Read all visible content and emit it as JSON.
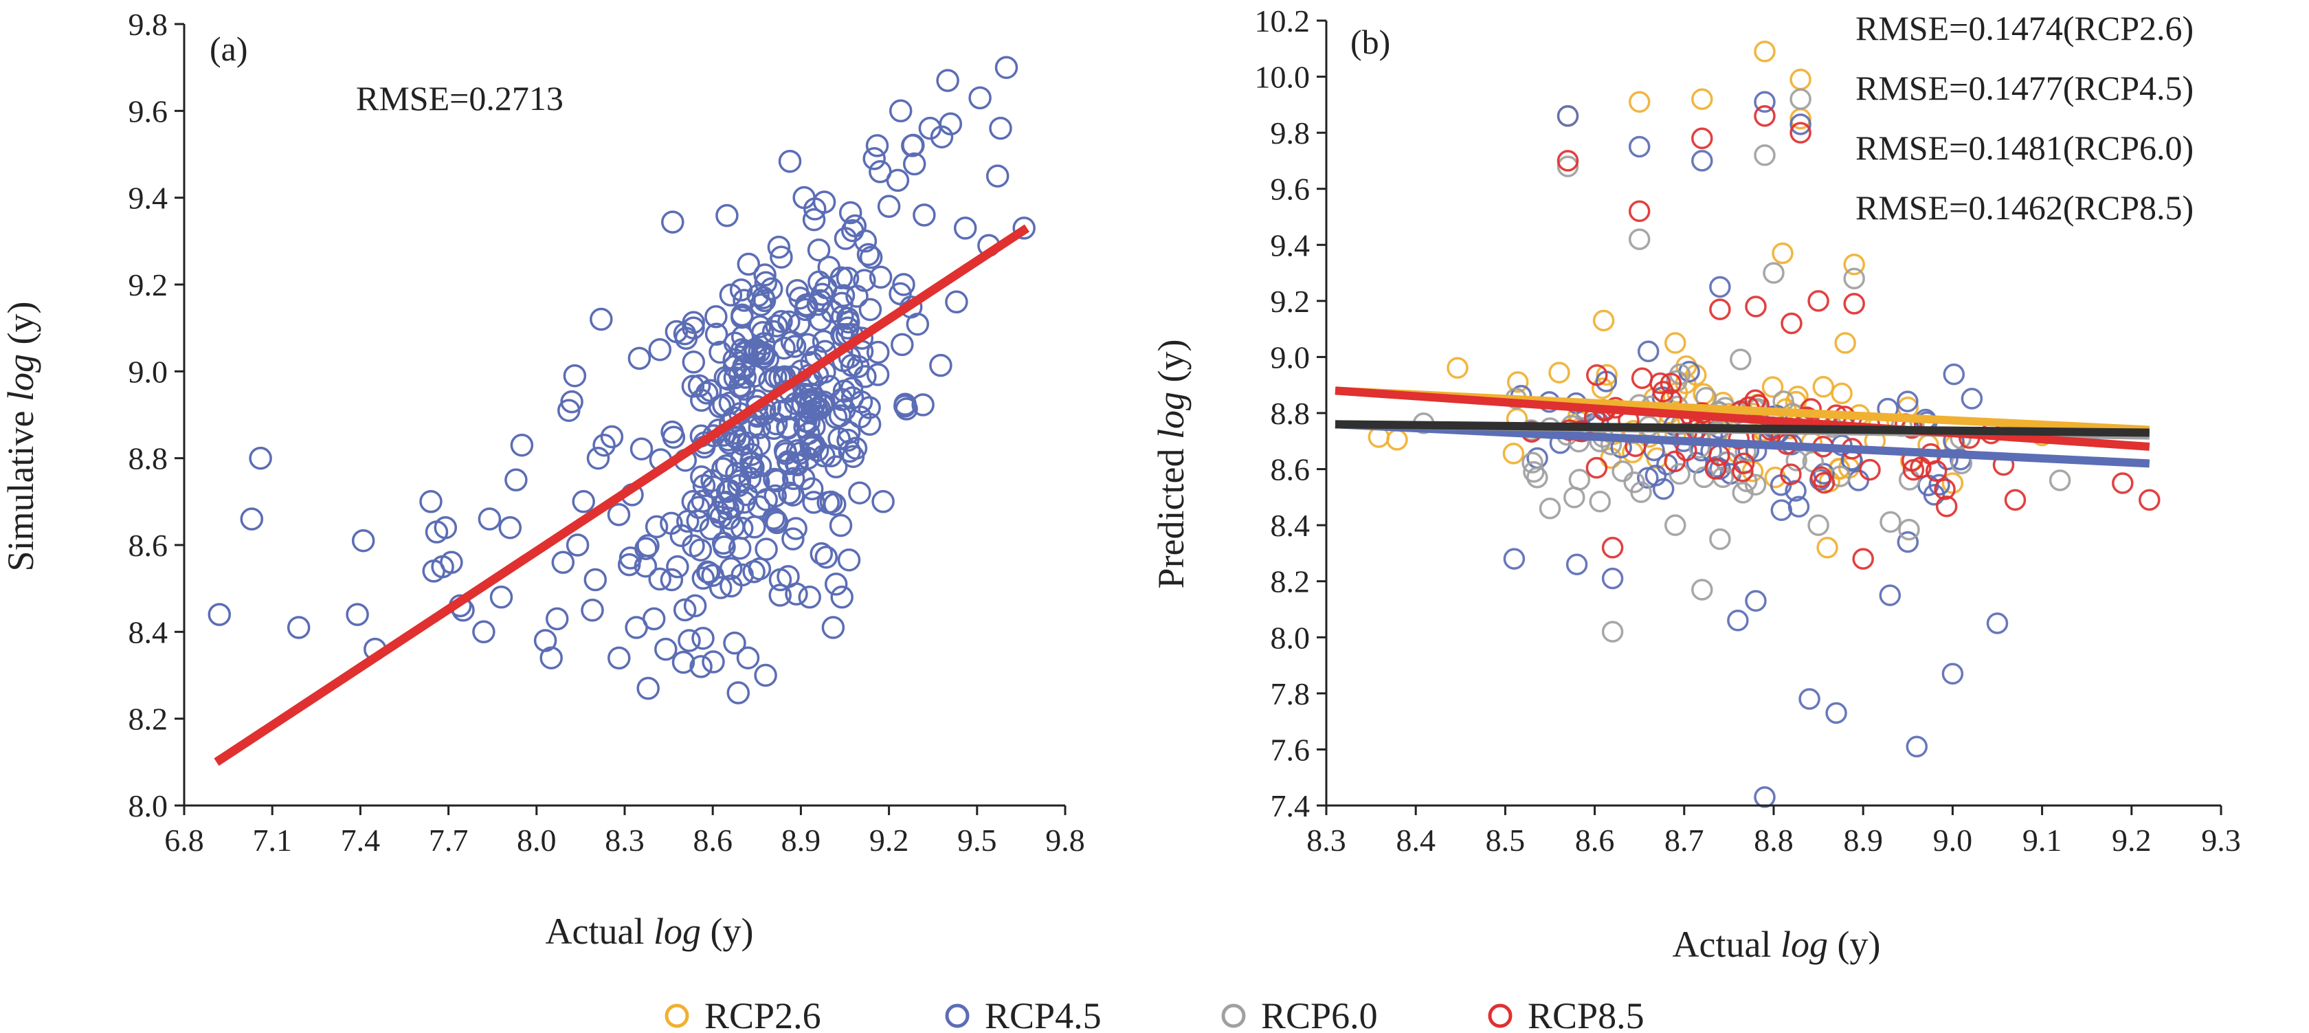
{
  "chart_data": [
    {
      "type": "scatter",
      "panel_label": "(a)",
      "annotation": "RMSE=0.2713",
      "xlabel_prefix": "Actual ",
      "xlabel_italic": "log",
      "xlabel_suffix": " (y)",
      "ylabel_prefix": "Simulative ",
      "ylabel_italic": "log",
      "ylabel_suffix": " (y)",
      "xlim": [
        6.8,
        9.8
      ],
      "ylim": [
        8.0,
        9.8
      ],
      "xticks": [
        "6.8",
        "7.1",
        "7.4",
        "7.7",
        "8.0",
        "8.3",
        "8.6",
        "8.9",
        "9.2",
        "9.5",
        "9.8"
      ],
      "yticks": [
        "8.0",
        "8.2",
        "8.4",
        "8.6",
        "8.8",
        "9.0",
        "9.2",
        "9.4",
        "9.6",
        "9.8"
      ],
      "marker_color": "#5b6db5",
      "fit_line": {
        "color": "#e03030",
        "x": [
          6.91,
          9.67
        ],
        "y": [
          8.1,
          9.33
        ]
      },
      "generated_cluster": {
        "center_x": 8.82,
        "center_y": 8.92,
        "sd_x": 0.2,
        "sd_y": 0.2,
        "slope": 0.44,
        "count": 330,
        "seed": 11
      },
      "points": [
        [
          6.92,
          8.44
        ],
        [
          7.03,
          8.66
        ],
        [
          7.06,
          8.8
        ],
        [
          7.19,
          8.41
        ],
        [
          7.39,
          8.44
        ],
        [
          7.41,
          8.61
        ],
        [
          7.45,
          8.36
        ],
        [
          7.64,
          8.7
        ],
        [
          7.65,
          8.54
        ],
        [
          7.66,
          8.63
        ],
        [
          7.68,
          8.55
        ],
        [
          7.69,
          8.64
        ],
        [
          7.71,
          8.56
        ],
        [
          7.74,
          8.46
        ],
        [
          7.75,
          8.45
        ],
        [
          7.82,
          8.4
        ],
        [
          7.84,
          8.66
        ],
        [
          7.88,
          8.48
        ],
        [
          7.91,
          8.64
        ],
        [
          7.93,
          8.75
        ],
        [
          7.95,
          8.83
        ],
        [
          8.03,
          8.38
        ],
        [
          8.05,
          8.34
        ],
        [
          8.07,
          8.43
        ],
        [
          8.09,
          8.56
        ],
        [
          8.11,
          8.91
        ],
        [
          8.12,
          8.93
        ],
        [
          8.13,
          8.99
        ],
        [
          8.14,
          8.6
        ],
        [
          8.16,
          8.7
        ],
        [
          8.19,
          8.45
        ],
        [
          8.2,
          8.52
        ],
        [
          8.21,
          8.8
        ],
        [
          8.22,
          9.12
        ],
        [
          8.23,
          8.83
        ],
        [
          8.28,
          8.67
        ],
        [
          8.32,
          8.57
        ],
        [
          8.34,
          8.41
        ],
        [
          8.35,
          9.03
        ],
        [
          8.38,
          8.27
        ],
        [
          8.4,
          8.43
        ],
        [
          8.42,
          9.05
        ],
        [
          8.44,
          8.36
        ],
        [
          8.46,
          8.52
        ],
        [
          8.48,
          8.55
        ],
        [
          8.5,
          8.33
        ],
        [
          8.52,
          8.38
        ],
        [
          8.54,
          8.46
        ],
        [
          8.56,
          8.32
        ],
        [
          8.6,
          8.53
        ],
        [
          8.72,
          8.34
        ],
        [
          8.78,
          8.3
        ],
        [
          8.83,
          8.52
        ],
        [
          8.93,
          8.48
        ],
        [
          8.97,
          8.58
        ],
        [
          9.01,
          8.41
        ],
        [
          9.02,
          8.51
        ],
        [
          9.04,
          8.48
        ],
        [
          8.98,
          9.39
        ],
        [
          9.02,
          8.78
        ],
        [
          9.1,
          8.72
        ],
        [
          9.15,
          9.49
        ],
        [
          9.16,
          9.52
        ],
        [
          9.17,
          9.46
        ],
        [
          9.18,
          8.7
        ],
        [
          9.2,
          9.38
        ],
        [
          9.23,
          9.44
        ],
        [
          9.24,
          9.6
        ],
        [
          9.28,
          9.52
        ],
        [
          9.32,
          9.36
        ],
        [
          9.34,
          9.56
        ],
        [
          9.38,
          9.54
        ],
        [
          9.4,
          9.67
        ],
        [
          9.41,
          9.57
        ],
        [
          9.43,
          9.16
        ],
        [
          9.46,
          9.33
        ],
        [
          9.51,
          9.63
        ],
        [
          9.54,
          9.29
        ],
        [
          9.57,
          9.45
        ],
        [
          9.58,
          9.56
        ],
        [
          9.6,
          9.7
        ],
        [
          9.66,
          9.33
        ],
        [
          9.12,
          9.3
        ],
        [
          9.25,
          9.2
        ],
        [
          9.06,
          9.1
        ],
        [
          8.92,
          9.15
        ],
        [
          8.8,
          9.19
        ],
        [
          8.7,
          9.05
        ],
        [
          8.66,
          8.88
        ],
        [
          8.58,
          8.95
        ]
      ]
    },
    {
      "type": "scatter",
      "panel_label": "(b)",
      "annotations": [
        "RMSE=0.1474(RCP2.6)",
        "RMSE=0.1477(RCP4.5)",
        "RMSE=0.1481(RCP6.0)",
        "RMSE=0.1462(RCP8.5)"
      ],
      "xlabel_prefix": "Actual ",
      "xlabel_italic": "log",
      "xlabel_suffix": " (y)",
      "ylabel_prefix": "Predicted ",
      "ylabel_italic": "log",
      "ylabel_suffix": " (y)",
      "xlim": [
        8.3,
        9.3
      ],
      "ylim": [
        7.4,
        10.2
      ],
      "xticks": [
        "8.3",
        "8.4",
        "8.5",
        "8.6",
        "8.7",
        "8.8",
        "8.9",
        "9.0",
        "9.1",
        "9.2",
        "9.3"
      ],
      "yticks": [
        "7.4",
        "7.6",
        "7.8",
        "8.0",
        "8.2",
        "8.4",
        "8.6",
        "8.8",
        "9.0",
        "9.2",
        "9.4",
        "9.6",
        "9.8",
        "10.0",
        "10.2"
      ],
      "legend_position": "bottom",
      "series": [
        {
          "name": "RCP2.6",
          "color": "#f0b030",
          "fit": {
            "x": [
              8.31,
              9.22
            ],
            "y": [
              8.88,
              8.74
            ]
          },
          "generated_cluster": {
            "center_x": 8.76,
            "center_y": 8.74,
            "sd_x": 0.15,
            "sd_y": 0.1,
            "slope": -0.15,
            "count": 60,
            "seed": 21
          },
          "points": [
            [
              8.57,
              9.86
            ],
            [
              8.65,
              9.91
            ],
            [
              8.72,
              9.92
            ],
            [
              8.79,
              10.09
            ],
            [
              8.83,
              9.99
            ],
            [
              8.83,
              9.85
            ],
            [
              8.61,
              9.13
            ],
            [
              8.81,
              9.37
            ],
            [
              8.88,
              9.05
            ],
            [
              8.95,
              8.82
            ],
            [
              9.0,
              8.55
            ],
            [
              8.69,
              9.05
            ],
            [
              8.89,
              9.33
            ],
            [
              8.86,
              8.32
            ],
            [
              9.1,
              8.72
            ]
          ]
        },
        {
          "name": "RCP4.5",
          "color": "#5b6db5",
          "fit": {
            "x": [
              8.31,
              9.22
            ],
            "y": [
              8.76,
              8.62
            ]
          },
          "generated_cluster": {
            "center_x": 8.76,
            "center_y": 8.68,
            "sd_x": 0.15,
            "sd_y": 0.12,
            "slope": -0.15,
            "count": 60,
            "seed": 31
          },
          "points": [
            [
              8.57,
              9.86
            ],
            [
              8.65,
              9.75
            ],
            [
              8.79,
              9.91
            ],
            [
              8.83,
              9.83
            ],
            [
              8.74,
              9.25
            ],
            [
              8.51,
              8.28
            ],
            [
              8.58,
              8.26
            ],
            [
              8.76,
              8.06
            ],
            [
              8.78,
              8.13
            ],
            [
              8.84,
              7.78
            ],
            [
              8.87,
              7.73
            ],
            [
              8.79,
              7.43
            ],
            [
              8.93,
              8.15
            ],
            [
              8.95,
              8.34
            ],
            [
              8.96,
              7.61
            ],
            [
              9.0,
              7.87
            ],
            [
              9.05,
              8.05
            ],
            [
              8.72,
              9.7
            ],
            [
              8.66,
              9.02
            ],
            [
              8.62,
              8.21
            ]
          ]
        },
        {
          "name": "RCP6.0",
          "color": "#a0a0a0",
          "fit": {
            "x": [
              8.31,
              9.22
            ],
            "y": [
              8.76,
              8.72
            ]
          },
          "generated_cluster": {
            "center_x": 8.76,
            "center_y": 8.7,
            "sd_x": 0.15,
            "sd_y": 0.12,
            "slope": -0.05,
            "count": 60,
            "seed": 41
          },
          "points": [
            [
              8.57,
              9.68
            ],
            [
              8.65,
              9.42
            ],
            [
              8.79,
              9.72
            ],
            [
              8.83,
              9.92
            ],
            [
              8.62,
              8.02
            ],
            [
              8.55,
              8.46
            ],
            [
              8.69,
              8.4
            ],
            [
              8.72,
              8.17
            ],
            [
              8.74,
              8.35
            ],
            [
              8.8,
              9.3
            ],
            [
              8.85,
              8.4
            ],
            [
              8.89,
              9.28
            ],
            [
              9.12,
              8.56
            ],
            [
              9.01,
              8.62
            ]
          ]
        },
        {
          "name": "RCP8.5",
          "color": "#e03030",
          "fit": {
            "x": [
              8.31,
              9.22
            ],
            "y": [
              8.88,
              8.68
            ]
          },
          "generated_cluster": {
            "center_x": 8.76,
            "center_y": 8.72,
            "sd_x": 0.15,
            "sd_y": 0.1,
            "slope": -0.2,
            "count": 60,
            "seed": 51
          },
          "points": [
            [
              8.57,
              9.7
            ],
            [
              8.65,
              9.52
            ],
            [
              8.72,
              9.78
            ],
            [
              8.79,
              9.86
            ],
            [
              8.83,
              9.8
            ],
            [
              8.74,
              9.17
            ],
            [
              8.78,
              9.18
            ],
            [
              8.89,
              9.19
            ],
            [
              8.62,
              8.32
            ],
            [
              8.85,
              9.2
            ],
            [
              8.82,
              9.12
            ],
            [
              9.07,
              8.49
            ],
            [
              9.22,
              8.49
            ],
            [
              8.9,
              8.28
            ],
            [
              9.19,
              8.55
            ]
          ]
        },
        {
          "name": "",
          "color": "#303030",
          "fit": {
            "x": [
              8.31,
              9.22
            ],
            "y": [
              8.76,
              8.73
            ]
          },
          "points": []
        }
      ]
    }
  ]
}
